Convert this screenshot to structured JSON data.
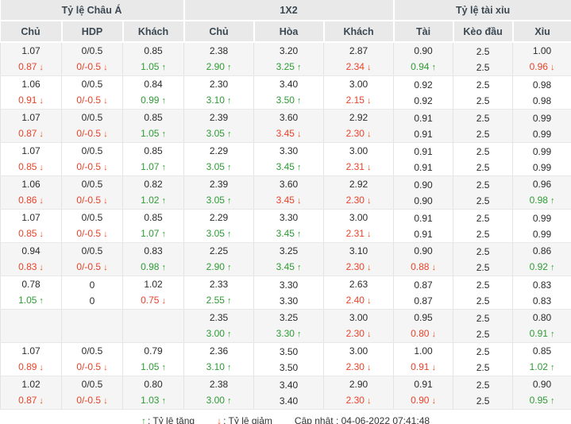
{
  "icons": {
    "up": "↑",
    "down": "↓"
  },
  "colors": {
    "increase": "#2f9b35",
    "decrease": "#e8432a",
    "header_bg": "#e9e9e9",
    "row_shade": "#f5f5f5"
  },
  "header": {
    "groups": [
      {
        "label": "Tỷ lệ Châu Á",
        "cols": [
          "Chủ",
          "HDP",
          "Khách"
        ]
      },
      {
        "label": "1X2",
        "cols": [
          "Chủ",
          "Hòa",
          "Khách"
        ]
      },
      {
        "label": "Tỷ lệ tài xỉu",
        "cols": [
          "Tài",
          "Kèo đầu",
          "Xỉu"
        ]
      }
    ]
  },
  "rows": [
    {
      "lines": [
        [
          [
            "1.07",
            "k",
            ""
          ],
          [
            "0/0.5",
            "k",
            ""
          ],
          [
            "0.85",
            "k",
            ""
          ],
          [
            "2.38",
            "k",
            ""
          ],
          [
            "3.20",
            "k",
            ""
          ],
          [
            "2.87",
            "k",
            ""
          ],
          [
            "0.90",
            "k",
            ""
          ],
          [
            "2.5",
            "k",
            ""
          ],
          [
            "1.00",
            "k",
            ""
          ]
        ],
        [
          [
            "0.87",
            "r",
            "d"
          ],
          [
            "0/-0.5",
            "r",
            "d"
          ],
          [
            "1.05",
            "g",
            "u"
          ],
          [
            "2.90",
            "g",
            "u"
          ],
          [
            "3.25",
            "g",
            "u"
          ],
          [
            "2.34",
            "r",
            "d"
          ],
          [
            "0.94",
            "g",
            "u"
          ],
          [
            "2.5",
            "k",
            ""
          ],
          [
            "0.96",
            "r",
            "d"
          ]
        ]
      ]
    },
    {
      "lines": [
        [
          [
            "1.06",
            "k",
            ""
          ],
          [
            "0/0.5",
            "k",
            ""
          ],
          [
            "0.84",
            "k",
            ""
          ],
          [
            "2.30",
            "k",
            ""
          ],
          [
            "3.40",
            "k",
            ""
          ],
          [
            "3.00",
            "k",
            ""
          ],
          [
            "0.92",
            "k",
            ""
          ],
          [
            "2.5",
            "k",
            ""
          ],
          [
            "0.98",
            "k",
            ""
          ]
        ],
        [
          [
            "0.91",
            "r",
            "d"
          ],
          [
            "0/-0.5",
            "r",
            "d"
          ],
          [
            "0.99",
            "g",
            "u"
          ],
          [
            "3.10",
            "g",
            "u"
          ],
          [
            "3.50",
            "g",
            "u"
          ],
          [
            "2.15",
            "r",
            "d"
          ],
          [
            "0.92",
            "k",
            ""
          ],
          [
            "2.5",
            "k",
            ""
          ],
          [
            "0.98",
            "k",
            ""
          ]
        ]
      ]
    },
    {
      "lines": [
        [
          [
            "1.07",
            "k",
            ""
          ],
          [
            "0/0.5",
            "k",
            ""
          ],
          [
            "0.85",
            "k",
            ""
          ],
          [
            "2.39",
            "k",
            ""
          ],
          [
            "3.60",
            "k",
            ""
          ],
          [
            "2.92",
            "k",
            ""
          ],
          [
            "0.91",
            "k",
            ""
          ],
          [
            "2.5",
            "k",
            ""
          ],
          [
            "0.99",
            "k",
            ""
          ]
        ],
        [
          [
            "0.87",
            "r",
            "d"
          ],
          [
            "0/-0.5",
            "r",
            "d"
          ],
          [
            "1.05",
            "g",
            "u"
          ],
          [
            "3.05",
            "g",
            "u"
          ],
          [
            "3.45",
            "r",
            "d"
          ],
          [
            "2.30",
            "r",
            "d"
          ],
          [
            "0.91",
            "k",
            ""
          ],
          [
            "2.5",
            "k",
            ""
          ],
          [
            "0.99",
            "k",
            ""
          ]
        ]
      ]
    },
    {
      "lines": [
        [
          [
            "1.07",
            "k",
            ""
          ],
          [
            "0/0.5",
            "k",
            ""
          ],
          [
            "0.85",
            "k",
            ""
          ],
          [
            "2.29",
            "k",
            ""
          ],
          [
            "3.30",
            "k",
            ""
          ],
          [
            "3.00",
            "k",
            ""
          ],
          [
            "0.91",
            "k",
            ""
          ],
          [
            "2.5",
            "k",
            ""
          ],
          [
            "0.99",
            "k",
            ""
          ]
        ],
        [
          [
            "0.85",
            "r",
            "d"
          ],
          [
            "0/-0.5",
            "r",
            "d"
          ],
          [
            "1.07",
            "g",
            "u"
          ],
          [
            "3.05",
            "g",
            "u"
          ],
          [
            "3.45",
            "g",
            "u"
          ],
          [
            "2.31",
            "r",
            "d"
          ],
          [
            "0.91",
            "k",
            ""
          ],
          [
            "2.5",
            "k",
            ""
          ],
          [
            "0.99",
            "k",
            ""
          ]
        ]
      ]
    },
    {
      "lines": [
        [
          [
            "1.06",
            "k",
            ""
          ],
          [
            "0/0.5",
            "k",
            ""
          ],
          [
            "0.82",
            "k",
            ""
          ],
          [
            "2.39",
            "k",
            ""
          ],
          [
            "3.60",
            "k",
            ""
          ],
          [
            "2.92",
            "k",
            ""
          ],
          [
            "0.90",
            "k",
            ""
          ],
          [
            "2.5",
            "k",
            ""
          ],
          [
            "0.96",
            "k",
            ""
          ]
        ],
        [
          [
            "0.86",
            "r",
            "d"
          ],
          [
            "0/-0.5",
            "r",
            "d"
          ],
          [
            "1.02",
            "g",
            "u"
          ],
          [
            "3.05",
            "g",
            "u"
          ],
          [
            "3.45",
            "r",
            "d"
          ],
          [
            "2.30",
            "r",
            "d"
          ],
          [
            "0.90",
            "k",
            ""
          ],
          [
            "2.5",
            "k",
            ""
          ],
          [
            "0.98",
            "g",
            "u"
          ]
        ]
      ]
    },
    {
      "lines": [
        [
          [
            "1.07",
            "k",
            ""
          ],
          [
            "0/0.5",
            "k",
            ""
          ],
          [
            "0.85",
            "k",
            ""
          ],
          [
            "2.29",
            "k",
            ""
          ],
          [
            "3.30",
            "k",
            ""
          ],
          [
            "3.00",
            "k",
            ""
          ],
          [
            "0.91",
            "k",
            ""
          ],
          [
            "2.5",
            "k",
            ""
          ],
          [
            "0.99",
            "k",
            ""
          ]
        ],
        [
          [
            "0.85",
            "r",
            "d"
          ],
          [
            "0/-0.5",
            "r",
            "d"
          ],
          [
            "1.07",
            "g",
            "u"
          ],
          [
            "3.05",
            "g",
            "u"
          ],
          [
            "3.45",
            "g",
            "u"
          ],
          [
            "2.31",
            "r",
            "d"
          ],
          [
            "0.91",
            "k",
            ""
          ],
          [
            "2.5",
            "k",
            ""
          ],
          [
            "0.99",
            "k",
            ""
          ]
        ]
      ]
    },
    {
      "lines": [
        [
          [
            "0.94",
            "k",
            ""
          ],
          [
            "0/0.5",
            "k",
            ""
          ],
          [
            "0.83",
            "k",
            ""
          ],
          [
            "2.25",
            "k",
            ""
          ],
          [
            "3.25",
            "k",
            ""
          ],
          [
            "3.10",
            "k",
            ""
          ],
          [
            "0.90",
            "k",
            ""
          ],
          [
            "2.5",
            "k",
            ""
          ],
          [
            "0.86",
            "k",
            ""
          ]
        ],
        [
          [
            "0.83",
            "r",
            "d"
          ],
          [
            "0/-0.5",
            "r",
            "d"
          ],
          [
            "0.98",
            "g",
            "u"
          ],
          [
            "2.90",
            "g",
            "u"
          ],
          [
            "3.45",
            "g",
            "u"
          ],
          [
            "2.30",
            "r",
            "d"
          ],
          [
            "0.88",
            "r",
            "d"
          ],
          [
            "2.5",
            "k",
            ""
          ],
          [
            "0.92",
            "g",
            "u"
          ]
        ]
      ]
    },
    {
      "lines": [
        [
          [
            "0.78",
            "k",
            ""
          ],
          [
            "0",
            "k",
            ""
          ],
          [
            "1.02",
            "k",
            ""
          ],
          [
            "2.33",
            "k",
            ""
          ],
          [
            "3.30",
            "k",
            ""
          ],
          [
            "2.63",
            "k",
            ""
          ],
          [
            "0.87",
            "k",
            ""
          ],
          [
            "2.5",
            "k",
            ""
          ],
          [
            "0.83",
            "k",
            ""
          ]
        ],
        [
          [
            "1.05",
            "g",
            "u"
          ],
          [
            "0",
            "k",
            ""
          ],
          [
            "0.75",
            "r",
            "d"
          ],
          [
            "2.55",
            "g",
            "u"
          ],
          [
            "3.30",
            "k",
            ""
          ],
          [
            "2.40",
            "r",
            "d"
          ],
          [
            "0.87",
            "k",
            ""
          ],
          [
            "2.5",
            "k",
            ""
          ],
          [
            "0.83",
            "k",
            ""
          ]
        ]
      ]
    },
    {
      "lines": [
        [
          [
            "",
            "k",
            ""
          ],
          [
            "",
            "k",
            ""
          ],
          [
            "",
            "k",
            ""
          ],
          [
            "2.35",
            "k",
            ""
          ],
          [
            "3.25",
            "k",
            ""
          ],
          [
            "3.00",
            "k",
            ""
          ],
          [
            "0.95",
            "k",
            ""
          ],
          [
            "2.5",
            "k",
            ""
          ],
          [
            "0.80",
            "k",
            ""
          ]
        ],
        [
          [
            "",
            "k",
            ""
          ],
          [
            "",
            "k",
            ""
          ],
          [
            "",
            "k",
            ""
          ],
          [
            "3.00",
            "g",
            "u"
          ],
          [
            "3.30",
            "g",
            "u"
          ],
          [
            "2.30",
            "r",
            "d"
          ],
          [
            "0.80",
            "r",
            "d"
          ],
          [
            "2.5",
            "k",
            ""
          ],
          [
            "0.91",
            "g",
            "u"
          ]
        ]
      ]
    },
    {
      "lines": [
        [
          [
            "1.07",
            "k",
            ""
          ],
          [
            "0/0.5",
            "k",
            ""
          ],
          [
            "0.79",
            "k",
            ""
          ],
          [
            "2.36",
            "k",
            ""
          ],
          [
            "3.50",
            "k",
            ""
          ],
          [
            "3.00",
            "k",
            ""
          ],
          [
            "1.00",
            "k",
            ""
          ],
          [
            "2.5",
            "k",
            ""
          ],
          [
            "0.85",
            "k",
            ""
          ]
        ],
        [
          [
            "0.89",
            "r",
            "d"
          ],
          [
            "0/-0.5",
            "r",
            "d"
          ],
          [
            "1.05",
            "g",
            "u"
          ],
          [
            "3.10",
            "g",
            "u"
          ],
          [
            "3.50",
            "k",
            ""
          ],
          [
            "2.30",
            "r",
            "d"
          ],
          [
            "0.91",
            "r",
            "d"
          ],
          [
            "2.5",
            "k",
            ""
          ],
          [
            "1.02",
            "g",
            "u"
          ]
        ]
      ]
    },
    {
      "lines": [
        [
          [
            "1.02",
            "k",
            ""
          ],
          [
            "0/0.5",
            "k",
            ""
          ],
          [
            "0.80",
            "k",
            ""
          ],
          [
            "2.38",
            "k",
            ""
          ],
          [
            "3.40",
            "k",
            ""
          ],
          [
            "2.90",
            "k",
            ""
          ],
          [
            "0.91",
            "k",
            ""
          ],
          [
            "2.5",
            "k",
            ""
          ],
          [
            "0.90",
            "k",
            ""
          ]
        ],
        [
          [
            "0.87",
            "r",
            "d"
          ],
          [
            "0/-0.5",
            "r",
            "d"
          ],
          [
            "1.03",
            "g",
            "u"
          ],
          [
            "3.00",
            "g",
            "u"
          ],
          [
            "3.40",
            "k",
            ""
          ],
          [
            "2.30",
            "r",
            "d"
          ],
          [
            "0.90",
            "r",
            "d"
          ],
          [
            "2.5",
            "k",
            ""
          ],
          [
            "0.95",
            "g",
            "u"
          ]
        ]
      ]
    }
  ],
  "footer": {
    "legend_up_label": ": Tỷ lệ tăng",
    "legend_down_label": ": Tỷ lệ giảm",
    "updated": "Cập nhật : 04-06-2022 07:41:48"
  }
}
